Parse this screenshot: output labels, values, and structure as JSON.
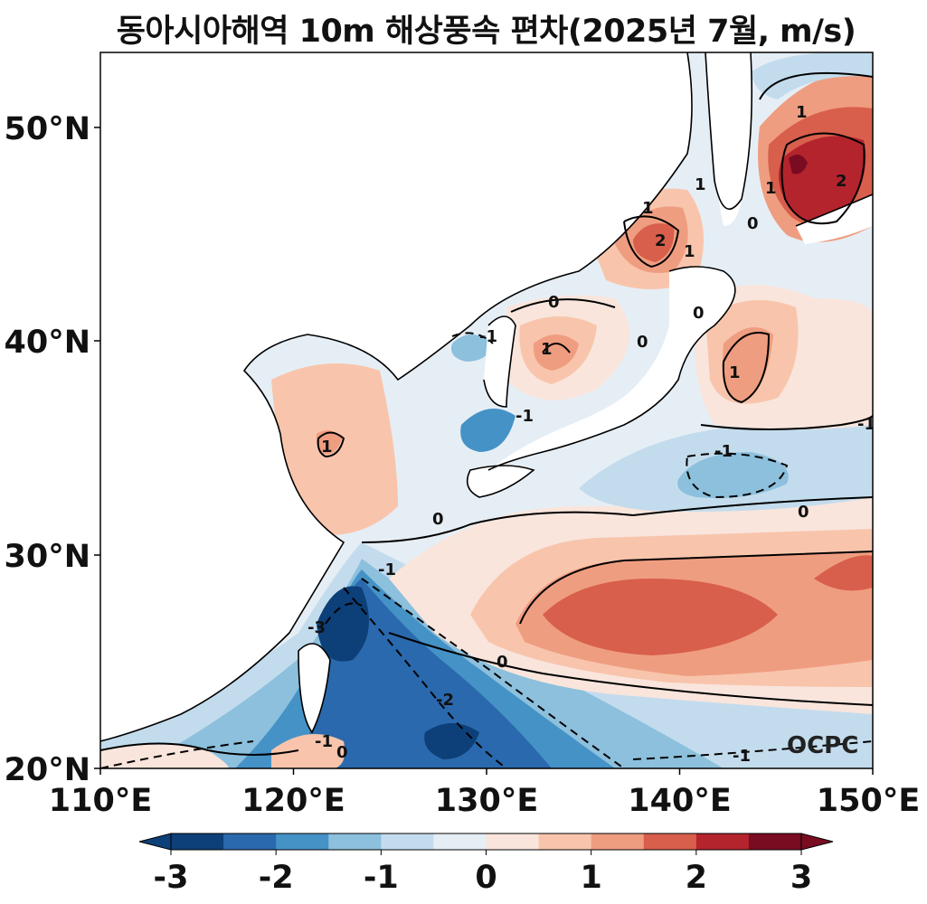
{
  "title": "동아시아해역 10m 해상풍속 편차(2025년 7월, m/s)",
  "axes": {
    "lon_range": [
      110,
      150
    ],
    "lat_range": [
      20,
      53.5
    ],
    "x_ticks": [
      "110°E",
      "120°E",
      "130°E",
      "140°E",
      "150°E"
    ],
    "y_ticks": [
      "20°N",
      "30°N",
      "40°N",
      "50°N"
    ]
  },
  "colorbar": {
    "ticks": [
      "-3",
      "-2",
      "-1",
      "0",
      "1",
      "2",
      "3"
    ],
    "range": [
      -3,
      3
    ],
    "colors": [
      "#0d3f79",
      "#2a69ad",
      "#4592c6",
      "#8cc0dd",
      "#c3dced",
      "#e6eef5",
      "#f9e5dc",
      "#f8c5ac",
      "#ef9d80",
      "#d85f4c",
      "#b4242d",
      "#7a0c22"
    ]
  },
  "contour_labels": [
    "0",
    "-1",
    "1",
    "-2",
    "-3",
    "2"
  ],
  "credit": "OCPC"
}
